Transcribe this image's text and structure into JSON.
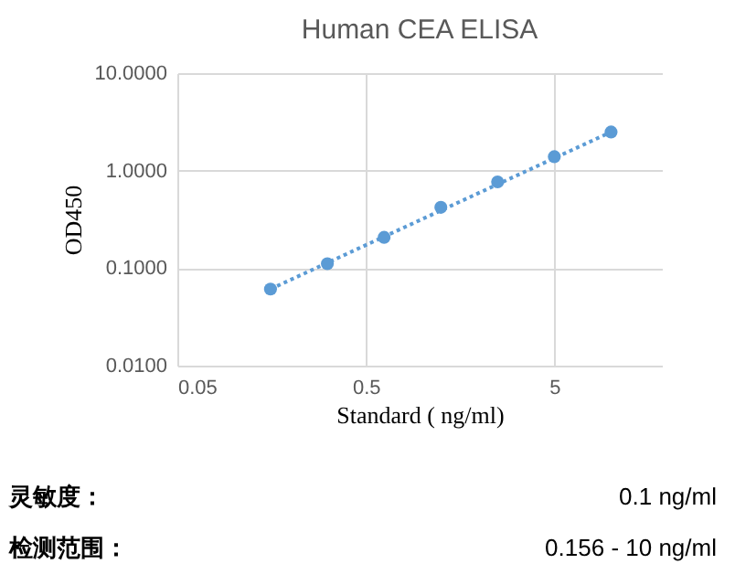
{
  "chart_data": {
    "type": "scatter",
    "title": "Human CEA ELISA",
    "xlabel": "Standard ( ng/ml)",
    "ylabel": "OD450",
    "log": "xy",
    "grid": true,
    "marker": "circle",
    "xlim": [
      0.05,
      18.6
    ],
    "xticks": [
      0.05,
      0.5,
      5
    ],
    "ylim": [
      0.01,
      10
    ],
    "yticks": [
      {
        "value": 10,
        "label": "10.0000"
      },
      {
        "value": 1,
        "label": "1.0000"
      },
      {
        "value": 0.1,
        "label": "0.1000"
      },
      {
        "value": 0.01,
        "label": "0.0100"
      }
    ],
    "x": [
      0.156,
      0.3125,
      0.625,
      1.25,
      2.5,
      5,
      10
    ],
    "series": [
      {
        "type": "line",
        "marker": "none",
        "line_style": "dotted",
        "color": "#5b9bd5",
        "x": [
          0.156,
          10
        ],
        "values": [
          0.061,
          2.49
        ]
      },
      {
        "color": "#5b9bd5",
        "values": [
          0.061,
          0.111,
          0.207,
          0.42,
          0.766,
          1.39,
          2.49
        ]
      }
    ],
    "annotations": [
      "灵敏度：",
      "0.1 ng/ml",
      "检测范围：",
      "0.156 - 10 ng/ml"
    ]
  }
}
